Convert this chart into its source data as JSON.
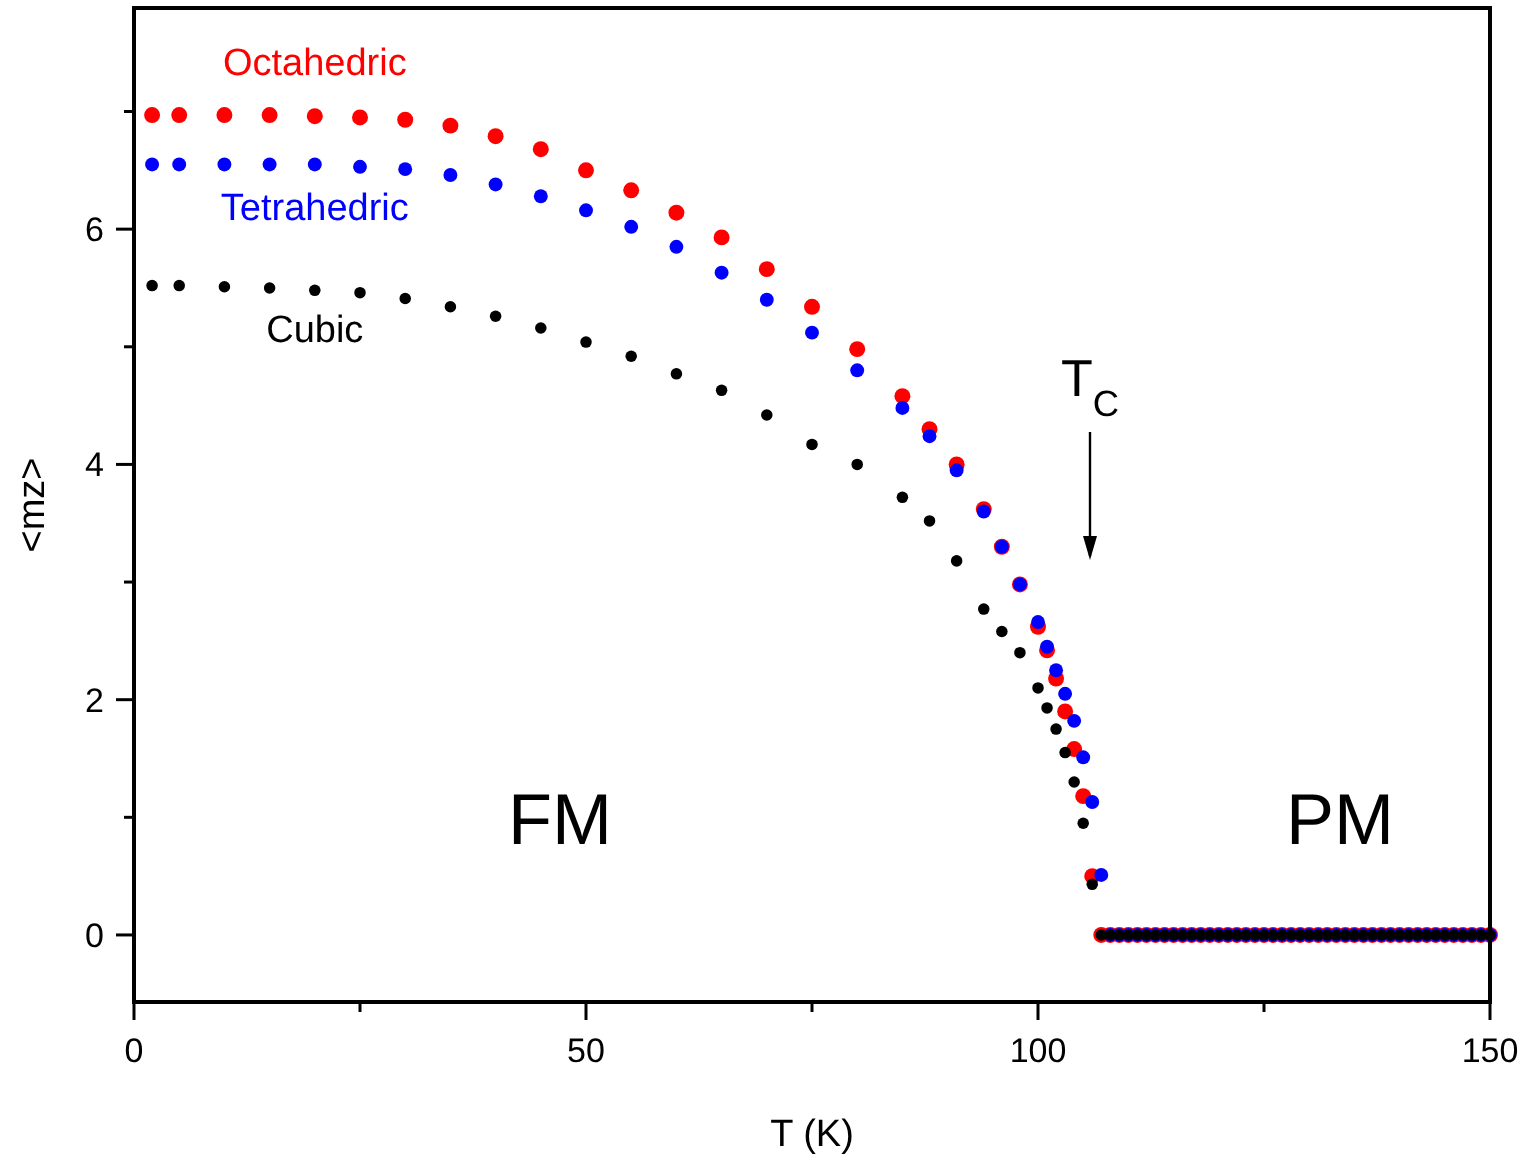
{
  "chart_data": {
    "type": "scatter",
    "xlabel": "T (K)",
    "ylabel": "<mz>",
    "marker": "circle",
    "grid": false,
    "xlim": [
      0,
      150
    ],
    "ylim": [
      -0.57,
      7.88
    ],
    "xticks": [
      0,
      {
        "value": 25,
        "label": null
      },
      50,
      {
        "value": 75,
        "label": null
      },
      100,
      {
        "value": 125,
        "label": null
      },
      150
    ],
    "yticks": [
      0,
      {
        "value": 1,
        "label": null
      },
      2,
      {
        "value": 3,
        "label": null
      },
      4,
      {
        "value": 5,
        "label": null
      },
      6,
      {
        "value": 7,
        "label": null
      }
    ],
    "annotations": [
      "T$_{C}$",
      "FM",
      "PM"
    ],
    "series": [
      {
        "name": "Octahedric",
        "color": "#ff0000",
        "x": [
          2,
          5,
          10,
          15,
          20,
          25,
          30,
          35,
          40,
          45,
          50,
          55,
          60,
          65,
          70,
          75,
          80,
          85,
          88,
          91,
          94,
          96,
          98,
          100,
          101,
          102,
          103,
          104,
          105,
          106,
          107,
          108,
          109,
          110,
          111,
          112,
          113,
          114,
          115,
          116,
          117,
          118,
          119,
          120,
          121,
          122,
          123,
          124,
          125,
          126,
          127,
          128,
          129,
          130,
          131,
          132,
          133,
          134,
          135,
          136,
          137,
          138,
          139,
          140,
          141,
          142,
          143,
          144,
          145,
          146,
          147,
          148,
          149,
          150
        ],
        "values": [
          6.97,
          6.97,
          6.97,
          6.97,
          6.96,
          6.95,
          6.93,
          6.88,
          6.79,
          6.68,
          6.5,
          6.33,
          6.14,
          5.93,
          5.66,
          5.34,
          4.98,
          4.58,
          4.3,
          4.0,
          3.62,
          3.3,
          2.98,
          2.62,
          2.42,
          2.18,
          1.9,
          1.58,
          1.18,
          0.5,
          0,
          0,
          0,
          0,
          0,
          0,
          0,
          0,
          0,
          0,
          0,
          0,
          0,
          0,
          0,
          0,
          0,
          0,
          0,
          0,
          0,
          0,
          0,
          0,
          0,
          0,
          0,
          0,
          0,
          0,
          0,
          0,
          0,
          0,
          0,
          0,
          0,
          0,
          0,
          0,
          0,
          0,
          0,
          0
        ]
      },
      {
        "name": "Tetrahedric",
        "color": "#0000ff",
        "x": [
          2,
          5,
          10,
          15,
          20,
          25,
          30,
          35,
          40,
          45,
          50,
          55,
          60,
          65,
          70,
          75,
          80,
          85,
          88,
          91,
          94,
          96,
          98,
          100,
          101,
          102,
          103,
          104,
          105,
          106,
          107,
          108,
          109,
          110,
          111,
          112,
          113,
          114,
          115,
          116,
          117,
          118,
          119,
          120,
          121,
          122,
          123,
          124,
          125,
          126,
          127,
          128,
          129,
          130,
          131,
          132,
          133,
          134,
          135,
          136,
          137,
          138,
          139,
          140,
          141,
          142,
          143,
          144,
          145,
          146,
          147,
          148,
          149,
          150
        ],
        "values": [
          6.55,
          6.55,
          6.55,
          6.55,
          6.55,
          6.53,
          6.51,
          6.46,
          6.38,
          6.28,
          6.16,
          6.02,
          5.85,
          5.63,
          5.4,
          5.12,
          4.8,
          4.48,
          4.24,
          3.95,
          3.6,
          3.3,
          2.98,
          2.66,
          2.45,
          2.25,
          2.05,
          1.82,
          1.51,
          1.13,
          0.51,
          0,
          0,
          0,
          0,
          0,
          0,
          0,
          0,
          0,
          0,
          0,
          0,
          0,
          0,
          0,
          0,
          0,
          0,
          0,
          0,
          0,
          0,
          0,
          0,
          0,
          0,
          0,
          0,
          0,
          0,
          0,
          0,
          0,
          0,
          0,
          0,
          0,
          0,
          0,
          0,
          0,
          0,
          0
        ]
      },
      {
        "name": "Cubic",
        "color": "#000000",
        "x": [
          2,
          5,
          10,
          15,
          20,
          25,
          30,
          35,
          40,
          45,
          50,
          55,
          60,
          65,
          70,
          75,
          80,
          85,
          88,
          91,
          94,
          96,
          98,
          100,
          101,
          102,
          103,
          104,
          105,
          106,
          107,
          108,
          109,
          110,
          111,
          112,
          113,
          114,
          115,
          116,
          117,
          118,
          119,
          120,
          121,
          122,
          123,
          124,
          125,
          126,
          127,
          128,
          129,
          130,
          131,
          132,
          133,
          134,
          135,
          136,
          137,
          138,
          139,
          140,
          141,
          142,
          143,
          144,
          145,
          146,
          147,
          148,
          149,
          150
        ],
        "values": [
          5.52,
          5.52,
          5.51,
          5.5,
          5.48,
          5.46,
          5.41,
          5.34,
          5.26,
          5.16,
          5.04,
          4.92,
          4.77,
          4.63,
          4.42,
          4.17,
          4.0,
          3.72,
          3.52,
          3.18,
          2.77,
          2.58,
          2.4,
          2.1,
          1.93,
          1.75,
          1.55,
          1.3,
          0.95,
          0.43,
          0,
          0,
          0,
          0,
          0,
          0,
          0,
          0,
          0,
          0,
          0,
          0,
          0,
          0,
          0,
          0,
          0,
          0,
          0,
          0,
          0,
          0,
          0,
          0,
          0,
          0,
          0,
          0,
          0,
          0,
          0,
          0,
          0,
          0,
          0,
          0,
          0,
          0,
          0,
          0,
          0,
          0,
          0,
          0
        ]
      }
    ]
  }
}
